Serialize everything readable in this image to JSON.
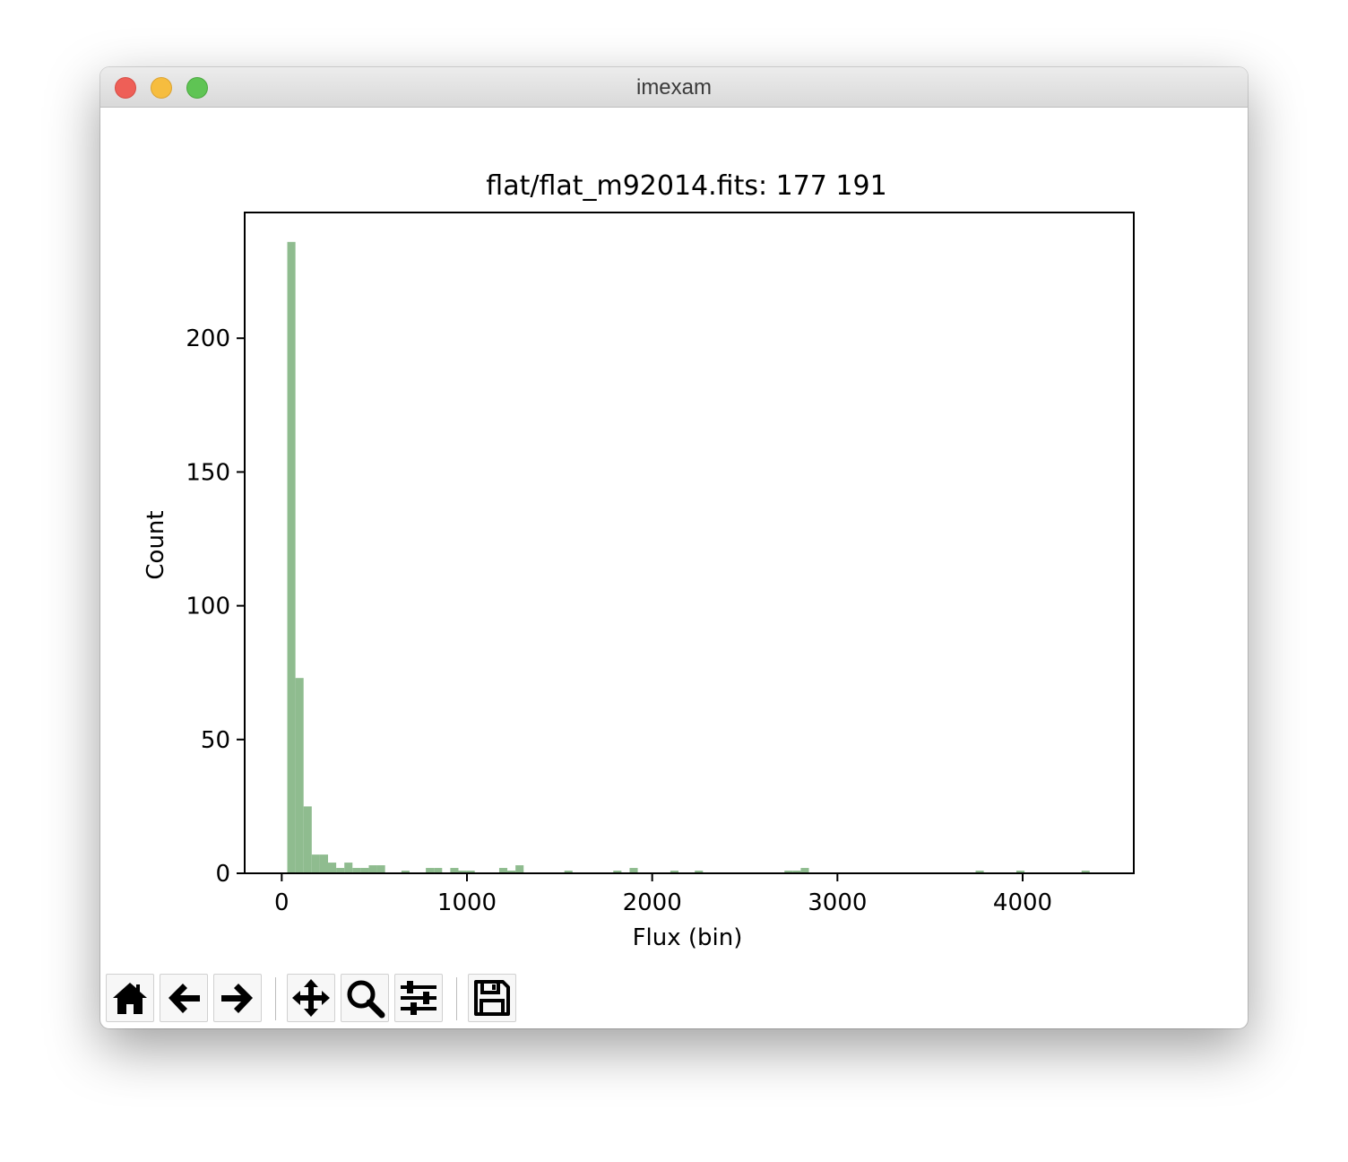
{
  "window": {
    "title": "imexam"
  },
  "chart_data": {
    "type": "bar",
    "title": "flat/flat_m92014.fits: 177 191",
    "xlabel": "Flux (bin)",
    "ylabel": "Count",
    "xlim": [
      -200,
      4600
    ],
    "ylim": [
      0,
      247
    ],
    "xticks": [
      0,
      1000,
      2000,
      3000,
      4000
    ],
    "yticks": [
      0,
      50,
      100,
      150,
      200
    ],
    "bin_width": 44,
    "color": "#8fbc8f",
    "bins": [
      {
        "x": 30,
        "count": 236
      },
      {
        "x": 74,
        "count": 73
      },
      {
        "x": 118,
        "count": 25
      },
      {
        "x": 162,
        "count": 7
      },
      {
        "x": 206,
        "count": 7
      },
      {
        "x": 250,
        "count": 4
      },
      {
        "x": 294,
        "count": 2
      },
      {
        "x": 338,
        "count": 4
      },
      {
        "x": 382,
        "count": 2
      },
      {
        "x": 426,
        "count": 2
      },
      {
        "x": 470,
        "count": 3
      },
      {
        "x": 514,
        "count": 3
      },
      {
        "x": 646,
        "count": 1
      },
      {
        "x": 778,
        "count": 2
      },
      {
        "x": 822,
        "count": 2
      },
      {
        "x": 910,
        "count": 2
      },
      {
        "x": 954,
        "count": 1
      },
      {
        "x": 998,
        "count": 1
      },
      {
        "x": 1174,
        "count": 2
      },
      {
        "x": 1218,
        "count": 1
      },
      {
        "x": 1262,
        "count": 3
      },
      {
        "x": 1526,
        "count": 1
      },
      {
        "x": 1790,
        "count": 1
      },
      {
        "x": 1878,
        "count": 2
      },
      {
        "x": 2098,
        "count": 1
      },
      {
        "x": 2230,
        "count": 1
      },
      {
        "x": 2714,
        "count": 1
      },
      {
        "x": 2758,
        "count": 1
      },
      {
        "x": 2802,
        "count": 2
      },
      {
        "x": 3746,
        "count": 1
      },
      {
        "x": 3966,
        "count": 1
      },
      {
        "x": 4318,
        "count": 1
      }
    ]
  },
  "toolbar": {
    "buttons": [
      {
        "name": "home-button",
        "icon": "home-icon"
      },
      {
        "name": "back-button",
        "icon": "arrow-left-icon"
      },
      {
        "name": "forward-button",
        "icon": "arrow-right-icon"
      },
      {
        "name": "pan-button",
        "icon": "move-icon"
      },
      {
        "name": "zoom-button",
        "icon": "magnifier-icon"
      },
      {
        "name": "configure-subplots-button",
        "icon": "sliders-icon"
      },
      {
        "name": "save-button",
        "icon": "floppy-disk-icon"
      }
    ]
  }
}
